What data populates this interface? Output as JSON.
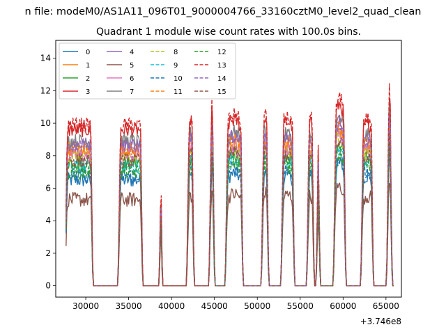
{
  "figure": {
    "suptitle": "n file: modeM0/AS1A11_096T01_9000004766_33160cztM0_level2_quad_clean",
    "x_offset_label": "+3.746e8"
  },
  "chart_data": {
    "type": "line",
    "title": "Quadrant 1 module wise count rates with 100.0s bins.",
    "xlabel": "",
    "ylabel": "",
    "xlim": [
      26500,
      66800
    ],
    "ylim": [
      -0.7,
      15.1
    ],
    "x_ticks": [
      30000,
      35000,
      40000,
      45000,
      50000,
      55000,
      60000,
      65000
    ],
    "x_tick_labels": [
      "30000",
      "35000",
      "40000",
      "45000",
      "50000",
      "55000",
      "60000",
      "65000"
    ],
    "y_ticks": [
      0,
      2,
      4,
      6,
      8,
      10,
      12,
      14
    ],
    "y_tick_labels": [
      "0",
      "2",
      "4",
      "6",
      "8",
      "10",
      "12",
      "14"
    ],
    "legend_position": "upper-left",
    "legend_columns": 4,
    "grid": false,
    "segments": [
      {
        "start": 27600,
        "end": 30800,
        "wave": 0.0
      },
      {
        "start": 33800,
        "end": 36600,
        "wave": 0.0
      },
      {
        "start": 38600,
        "end": 38900,
        "wave": 0.0
      },
      {
        "start": 41800,
        "end": 42600,
        "wave": 0.4
      },
      {
        "start": 44400,
        "end": 45000,
        "wave": 0.9
      },
      {
        "start": 46300,
        "end": 48300,
        "wave": 0.5
      },
      {
        "start": 50500,
        "end": 51300,
        "wave": 0.6
      },
      {
        "start": 52800,
        "end": 54300,
        "wave": 0.4
      },
      {
        "start": 55800,
        "end": 56600,
        "wave": 0.3
      },
      {
        "start": 56900,
        "end": 57300,
        "wave": 0.3
      },
      {
        "start": 58900,
        "end": 60300,
        "wave": 1.3
      },
      {
        "start": 62100,
        "end": 63500,
        "wave": 0.3
      },
      {
        "start": 65100,
        "end": 65700,
        "wave": 1.8
      }
    ],
    "series": [
      {
        "name": "0",
        "color": "#1f77b4",
        "dash": "solid",
        "level": 6.5
      },
      {
        "name": "1",
        "color": "#ff7f0e",
        "dash": "solid",
        "level": 8.2
      },
      {
        "name": "2",
        "color": "#2ca02c",
        "dash": "solid",
        "level": 7.6
      },
      {
        "name": "3",
        "color": "#d62728",
        "dash": "solid",
        "level": 9.6
      },
      {
        "name": "4",
        "color": "#9467bd",
        "dash": "solid",
        "level": 8.7
      },
      {
        "name": "5",
        "color": "#8c564b",
        "dash": "solid",
        "level": 5.3
      },
      {
        "name": "6",
        "color": "#e377c2",
        "dash": "solid",
        "level": 8.0
      },
      {
        "name": "7",
        "color": "#7f7f7f",
        "dash": "solid",
        "level": 8.9
      },
      {
        "name": "8",
        "color": "#bcbd22",
        "dash": "dashed",
        "level": 7.9
      },
      {
        "name": "9",
        "color": "#17becf",
        "dash": "dashed",
        "level": 7.3
      },
      {
        "name": "10",
        "color": "#1f77b4",
        "dash": "dashed",
        "level": 6.8
      },
      {
        "name": "11",
        "color": "#ff7f0e",
        "dash": "dashed",
        "level": 8.4
      },
      {
        "name": "12",
        "color": "#2ca02c",
        "dash": "dashed",
        "level": 7.0
      },
      {
        "name": "13",
        "color": "#d62728",
        "dash": "dashed",
        "level": 9.9
      },
      {
        "name": "14",
        "color": "#9467bd",
        "dash": "dashed",
        "level": 8.6
      },
      {
        "name": "15",
        "color": "#8c564b",
        "dash": "dashed",
        "level": 7.7
      }
    ]
  }
}
